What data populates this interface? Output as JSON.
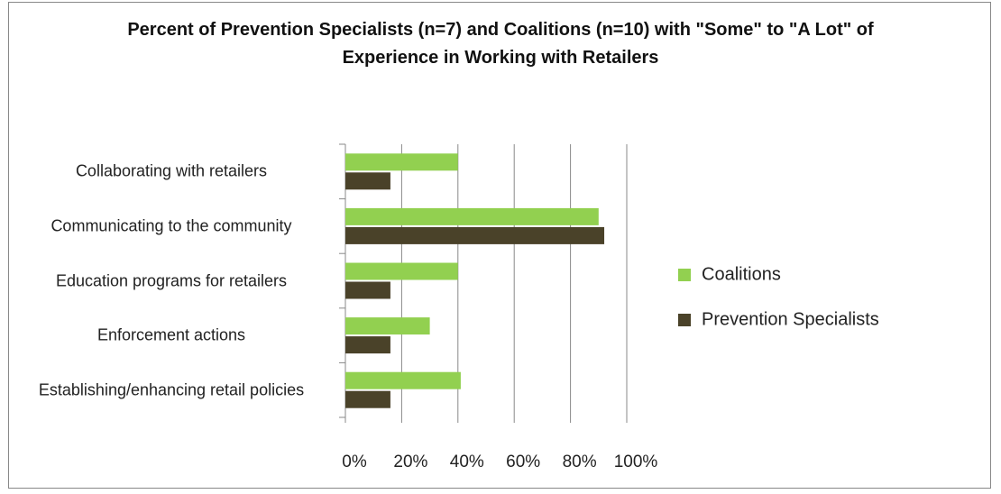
{
  "chart_data": {
    "type": "bar",
    "orientation": "horizontal",
    "title": "Percent of Prevention Specialists (n=7) and Coalitions (n=10) with \"Some\" to \"A Lot\" of Experience in Working with Retailers",
    "categories": [
      "Collaborating with retailers",
      "Communicating to the community",
      "Education programs for retailers",
      "Enforcement actions",
      "Establishing/enhancing retail policies"
    ],
    "series": [
      {
        "name": "Coalitions",
        "color": "#92d050",
        "values": [
          40,
          90,
          40,
          30,
          41
        ]
      },
      {
        "name": "Prevention Specialists",
        "color": "#4a4229",
        "values": [
          16,
          92,
          16,
          16,
          16
        ]
      }
    ],
    "xlim": [
      0,
      100
    ],
    "xticks": [
      {
        "value": 0,
        "label": "0%"
      },
      {
        "value": 20,
        "label": "20%"
      },
      {
        "value": 40,
        "label": "40%"
      },
      {
        "value": 60,
        "label": "60%"
      },
      {
        "value": 80,
        "label": "80%"
      },
      {
        "value": 100,
        "label": "100%"
      }
    ],
    "grid": true,
    "legend": "right"
  }
}
